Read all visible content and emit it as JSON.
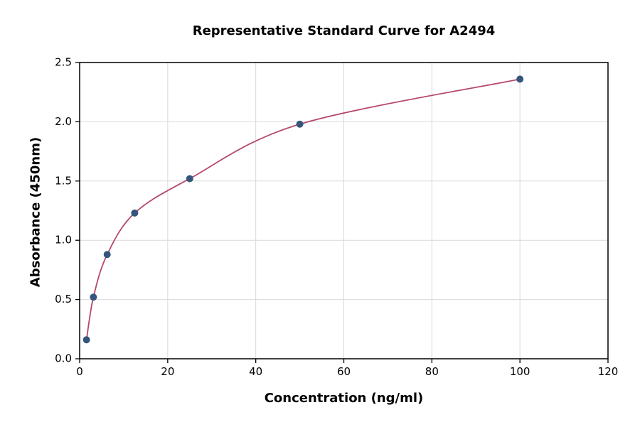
{
  "chart_data": {
    "type": "scatter",
    "title": "Representative Standard Curve for A2494",
    "xlabel": "Concentration (ng/ml)",
    "ylabel": "Absorbance (450nm)",
    "xlim": [
      0,
      120
    ],
    "ylim": [
      0,
      2.5
    ],
    "x_ticks": [
      0,
      20,
      40,
      60,
      80,
      100,
      120
    ],
    "y_ticks": [
      "0.0",
      "0.5",
      "1.0",
      "1.5",
      "2.0",
      "2.5"
    ],
    "grid": true,
    "legend": "none",
    "points": [
      {
        "x": 1.56,
        "y": 0.16
      },
      {
        "x": 3.13,
        "y": 0.52
      },
      {
        "x": 6.25,
        "y": 0.88
      },
      {
        "x": 12.5,
        "y": 1.23
      },
      {
        "x": 25,
        "y": 1.52
      },
      {
        "x": 50,
        "y": 1.98
      },
      {
        "x": 100,
        "y": 2.36
      }
    ],
    "colors": {
      "curve": "#b5496b",
      "points": "#35567c",
      "grid": "#d9d9d9",
      "frame": "#000000"
    }
  }
}
